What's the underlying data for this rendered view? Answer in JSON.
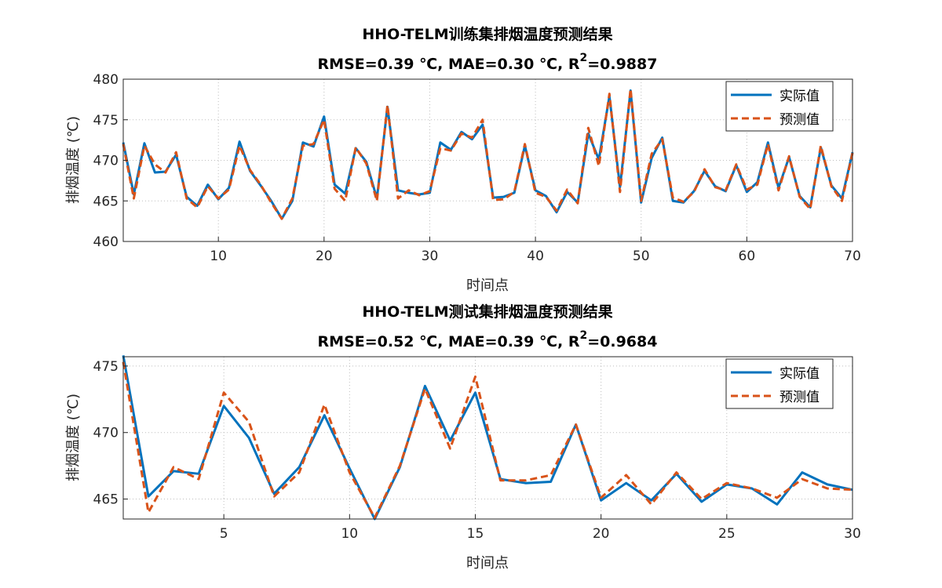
{
  "chart_data": [
    {
      "type": "line",
      "title": "HHO-TELM训练集排烟温度预测结果",
      "subtitle_parts": [
        "RMSE=0.39 ℃,  MAE=0.30 ℃,  R",
        "2",
        "=0.9887"
      ],
      "xlabel": "时间点",
      "ylabel": "排烟温度 (℃)",
      "xlim": [
        1,
        70
      ],
      "ylim": [
        460,
        480
      ],
      "xticks": [
        10,
        20,
        30,
        40,
        50,
        60,
        70
      ],
      "yticks": [
        460,
        465,
        470,
        475,
        480
      ],
      "grid": true,
      "legend_position": "top-right",
      "series": [
        {
          "name": "实际值",
          "color": "#0072BD",
          "style": "solid",
          "values": [
            472.2,
            465.8,
            472.1,
            468.5,
            468.6,
            470.7,
            465.5,
            464.4,
            467.0,
            465.2,
            466.6,
            472.3,
            468.7,
            466.9,
            465.0,
            462.8,
            465.0,
            472.2,
            471.7,
            475.4,
            467.0,
            465.9,
            471.5,
            469.8,
            465.3,
            476.6,
            466.3,
            466.0,
            465.8,
            466.0,
            472.2,
            471.3,
            473.5,
            472.6,
            474.4,
            465.4,
            465.5,
            466.0,
            471.8,
            466.3,
            465.6,
            463.6,
            466.1,
            464.8,
            473.3,
            470.1,
            477.9,
            466.7,
            478.6,
            464.8,
            470.3,
            472.8,
            465.0,
            464.8,
            466.2,
            468.7,
            466.8,
            466.2,
            469.4,
            466.1,
            467.3,
            472.2,
            466.6,
            470.4,
            465.6,
            464.2,
            471.6,
            466.9,
            465.3,
            471.0
          ]
        },
        {
          "name": "预测值",
          "color": "#D95319",
          "style": "dashed",
          "values": [
            472.0,
            465.3,
            471.8,
            469.5,
            468.5,
            471.0,
            465.3,
            464.2,
            466.8,
            465.3,
            466.4,
            471.8,
            468.8,
            467.0,
            464.8,
            462.8,
            465.3,
            471.8,
            472.0,
            475.0,
            466.5,
            465.0,
            471.6,
            469.6,
            465.0,
            476.8,
            465.3,
            466.3,
            465.7,
            466.2,
            471.5,
            471.2,
            473.3,
            472.8,
            475.0,
            465.1,
            465.2,
            466.1,
            472.0,
            466.0,
            465.5,
            463.8,
            466.4,
            464.7,
            474.0,
            469.3,
            478.2,
            466.1,
            478.8,
            465.0,
            470.8,
            472.6,
            465.4,
            464.9,
            466.1,
            468.9,
            466.7,
            466.3,
            469.5,
            466.4,
            467.0,
            472.0,
            466.3,
            470.5,
            465.5,
            464.0,
            471.8,
            466.8,
            465.0,
            470.9
          ]
        }
      ]
    },
    {
      "type": "line",
      "title": "HHO-TELM测试集排烟温度预测结果",
      "subtitle_parts": [
        "RMSE=0.52 ℃,  MAE=0.39 ℃,  R",
        "2",
        "=0.9684"
      ],
      "xlabel": "时间点",
      "ylabel": "排烟温度 (℃)",
      "xlim": [
        1,
        30
      ],
      "ylim": [
        463.5,
        475.7
      ],
      "xticks": [
        5,
        10,
        15,
        20,
        25,
        30
      ],
      "yticks": [
        465,
        470,
        475
      ],
      "grid": true,
      "legend_position": "top-right",
      "series": [
        {
          "name": "实际值",
          "color": "#0072BD",
          "style": "solid",
          "values": [
            475.8,
            465.2,
            467.1,
            466.9,
            472.0,
            469.6,
            465.4,
            467.4,
            471.3,
            467.3,
            463.5,
            467.4,
            473.5,
            469.4,
            473.0,
            466.5,
            466.2,
            466.3,
            470.6,
            464.9,
            466.2,
            464.9,
            466.9,
            464.8,
            466.1,
            465.8,
            464.6,
            467.0,
            466.1,
            465.7
          ]
        },
        {
          "name": "预测值",
          "color": "#D95319",
          "style": "dashed",
          "values": [
            475.3,
            464.0,
            467.4,
            466.5,
            473.0,
            470.8,
            465.2,
            467.0,
            472.1,
            467.0,
            463.6,
            467.5,
            473.3,
            468.8,
            474.2,
            466.4,
            466.4,
            466.8,
            470.6,
            465.1,
            466.8,
            464.6,
            467.0,
            465.0,
            466.2,
            465.8,
            465.1,
            466.5,
            465.8,
            465.7
          ]
        }
      ]
    }
  ]
}
